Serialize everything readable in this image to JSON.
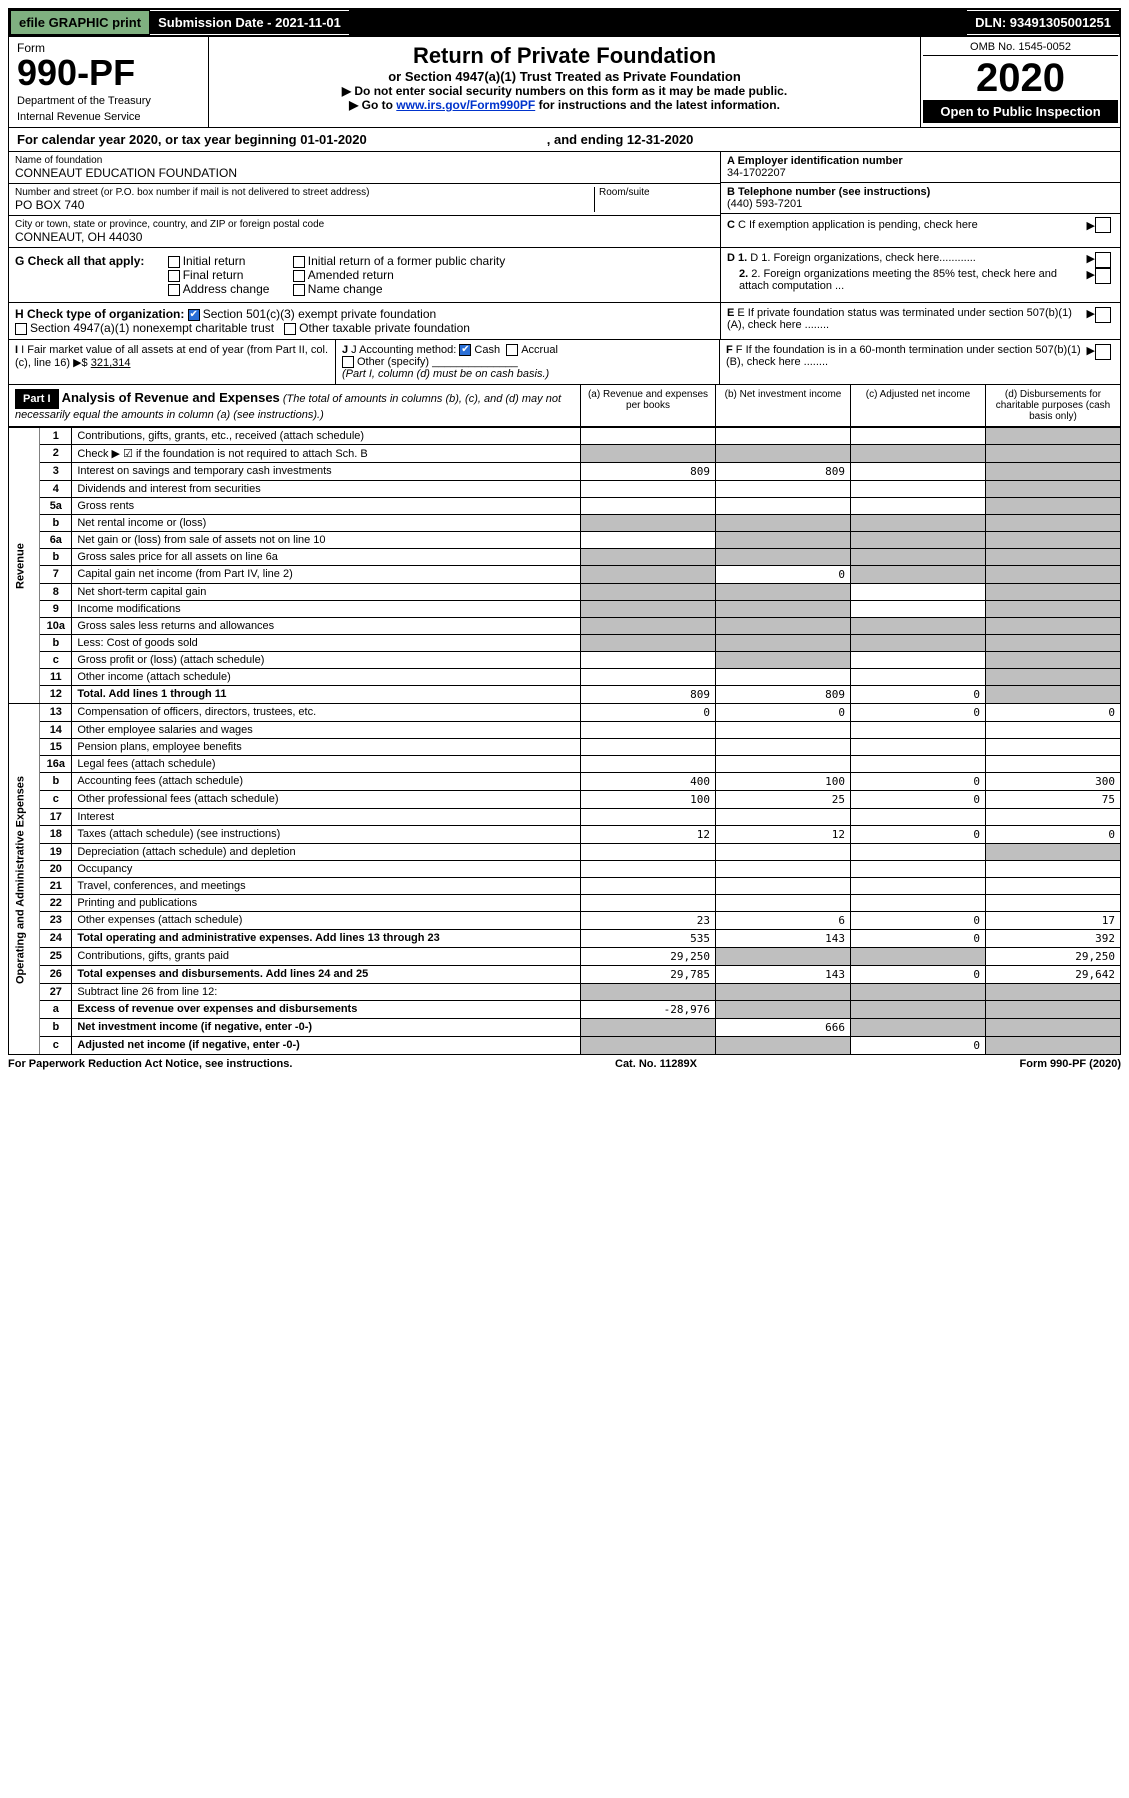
{
  "topbar": {
    "efile": "efile GRAPHIC print",
    "submission": "Submission Date - 2021-11-01",
    "dln": "DLN: 93491305001251"
  },
  "header": {
    "form_word": "Form",
    "form_no": "990-PF",
    "dept": "Department of the Treasury",
    "irs": "Internal Revenue Service",
    "title": "Return of Private Foundation",
    "sub1": "or Section 4947(a)(1) Trust Treated as Private Foundation",
    "sub2": "▶ Do not enter social security numbers on this form as it may be made public.",
    "sub3_pre": "▶ Go to ",
    "sub3_link": "www.irs.gov/Form990PF",
    "sub3_post": " for instructions and the latest information.",
    "omb": "OMB No. 1545-0052",
    "year": "2020",
    "open": "Open to Public Inspection"
  },
  "cal": {
    "pre": "For calendar year 2020, or tax year beginning ",
    "begin": "01-01-2020",
    "mid": ", and ending ",
    "end": "12-31-2020"
  },
  "id": {
    "name_label": "Name of foundation",
    "name": "CONNEAUT EDUCATION FOUNDATION",
    "addr_label": "Number and street (or P.O. box number if mail is not delivered to street address)",
    "addr": "PO BOX 740",
    "room_label": "Room/suite",
    "city_label": "City or town, state or province, country, and ZIP or foreign postal code",
    "city": "CONNEAUT, OH  44030",
    "ein_label": "A Employer identification number",
    "ein": "34-1702207",
    "tel_label": "B Telephone number (see instructions)",
    "tel": "(440) 593-7201",
    "c": "C If exemption application is pending, check here",
    "d1": "D 1. Foreign organizations, check here............",
    "d2": "2. Foreign organizations meeting the 85% test, check here and attach computation ...",
    "e": "E If private foundation status was terminated under section 507(b)(1)(A), check here ........",
    "f": "F If the foundation is in a 60-month termination under section 507(b)(1)(B), check here ........"
  },
  "g": {
    "label": "G Check all that apply:",
    "opts": [
      "Initial return",
      "Final return",
      "Address change",
      "Initial return of a former public charity",
      "Amended return",
      "Name change"
    ]
  },
  "h": {
    "label": "H Check type of organization:",
    "o1": "Section 501(c)(3) exempt private foundation",
    "o2": "Section 4947(a)(1) nonexempt charitable trust",
    "o3": "Other taxable private foundation"
  },
  "i": {
    "label": "I Fair market value of all assets at end of year (from Part II, col. (c), line 16) ▶$ ",
    "val": "321,314"
  },
  "j": {
    "label": "J Accounting method:",
    "o1": "Cash",
    "o2": "Accrual",
    "o3": "Other (specify)",
    "note": "(Part I, column (d) must be on cash basis.)"
  },
  "part1": {
    "hdr": "Part I",
    "title": "Analysis of Revenue and Expenses",
    "note": " (The total of amounts in columns (b), (c), and (d) may not necessarily equal the amounts in column (a) (see instructions).)",
    "cols": {
      "a": "(a) Revenue and expenses per books",
      "b": "(b) Net investment income",
      "c": "(c) Adjusted net income",
      "d": "(d) Disbursements for charitable purposes (cash basis only)"
    }
  },
  "side": {
    "rev": "Revenue",
    "exp": "Operating and Administrative Expenses"
  },
  "rows": [
    {
      "n": "1",
      "d": "Contributions, gifts, grants, etc., received (attach schedule)",
      "a": "",
      "b": "",
      "c": "",
      "dcol": "",
      "shade_d": true
    },
    {
      "n": "2",
      "d": "Check ▶ ☑ if the foundation is not required to attach Sch. B",
      "a": "",
      "b": "",
      "c": "",
      "dcol": "",
      "shade_all": true,
      "checked": true
    },
    {
      "n": "3",
      "d": "Interest on savings and temporary cash investments",
      "a": "809",
      "b": "809",
      "c": "",
      "dcol": "",
      "shade_d": true
    },
    {
      "n": "4",
      "d": "Dividends and interest from securities",
      "a": "",
      "b": "",
      "c": "",
      "dcol": "",
      "shade_d": true
    },
    {
      "n": "5a",
      "d": "Gross rents",
      "a": "",
      "b": "",
      "c": "",
      "dcol": "",
      "shade_d": true
    },
    {
      "n": "b",
      "d": "Net rental income or (loss)",
      "a": "",
      "b": "",
      "c": "",
      "dcol": "",
      "shade_all": true
    },
    {
      "n": "6a",
      "d": "Net gain or (loss) from sale of assets not on line 10",
      "a": "",
      "b": "",
      "c": "",
      "dcol": "",
      "shade_bcd": true
    },
    {
      "n": "b",
      "d": "Gross sales price for all assets on line 6a",
      "a": "",
      "b": "",
      "c": "",
      "dcol": "",
      "shade_all": true
    },
    {
      "n": "7",
      "d": "Capital gain net income (from Part IV, line 2)",
      "a": "",
      "b": "0",
      "c": "",
      "dcol": "",
      "shade_a": true,
      "shade_cd": true
    },
    {
      "n": "8",
      "d": "Net short-term capital gain",
      "a": "",
      "b": "",
      "c": "",
      "dcol": "",
      "shade_ab": true,
      "shade_d": true
    },
    {
      "n": "9",
      "d": "Income modifications",
      "a": "",
      "b": "",
      "c": "",
      "dcol": "",
      "shade_ab": true,
      "shade_d": true
    },
    {
      "n": "10a",
      "d": "Gross sales less returns and allowances",
      "a": "",
      "b": "",
      "c": "",
      "dcol": "",
      "shade_all": true
    },
    {
      "n": "b",
      "d": "Less: Cost of goods sold",
      "a": "",
      "b": "",
      "c": "",
      "dcol": "",
      "shade_all": true
    },
    {
      "n": "c",
      "d": "Gross profit or (loss) (attach schedule)",
      "a": "",
      "b": "",
      "c": "",
      "dcol": "",
      "shade_b": true,
      "shade_d": true
    },
    {
      "n": "11",
      "d": "Other income (attach schedule)",
      "a": "",
      "b": "",
      "c": "",
      "dcol": "",
      "shade_d": true
    },
    {
      "n": "12",
      "d": "Total. Add lines 1 through 11",
      "a": "809",
      "b": "809",
      "c": "0",
      "dcol": "",
      "bold": true,
      "shade_d": true
    },
    {
      "n": "13",
      "d": "Compensation of officers, directors, trustees, etc.",
      "a": "0",
      "b": "0",
      "c": "0",
      "dcol": "0"
    },
    {
      "n": "14",
      "d": "Other employee salaries and wages",
      "a": "",
      "b": "",
      "c": "",
      "dcol": ""
    },
    {
      "n": "15",
      "d": "Pension plans, employee benefits",
      "a": "",
      "b": "",
      "c": "",
      "dcol": ""
    },
    {
      "n": "16a",
      "d": "Legal fees (attach schedule)",
      "a": "",
      "b": "",
      "c": "",
      "dcol": ""
    },
    {
      "n": "b",
      "d": "Accounting fees (attach schedule)",
      "a": "400",
      "b": "100",
      "c": "0",
      "dcol": "300"
    },
    {
      "n": "c",
      "d": "Other professional fees (attach schedule)",
      "a": "100",
      "b": "25",
      "c": "0",
      "dcol": "75"
    },
    {
      "n": "17",
      "d": "Interest",
      "a": "",
      "b": "",
      "c": "",
      "dcol": ""
    },
    {
      "n": "18",
      "d": "Taxes (attach schedule) (see instructions)",
      "a": "12",
      "b": "12",
      "c": "0",
      "dcol": "0"
    },
    {
      "n": "19",
      "d": "Depreciation (attach schedule) and depletion",
      "a": "",
      "b": "",
      "c": "",
      "dcol": "",
      "shade_d": true
    },
    {
      "n": "20",
      "d": "Occupancy",
      "a": "",
      "b": "",
      "c": "",
      "dcol": ""
    },
    {
      "n": "21",
      "d": "Travel, conferences, and meetings",
      "a": "",
      "b": "",
      "c": "",
      "dcol": ""
    },
    {
      "n": "22",
      "d": "Printing and publications",
      "a": "",
      "b": "",
      "c": "",
      "dcol": ""
    },
    {
      "n": "23",
      "d": "Other expenses (attach schedule)",
      "a": "23",
      "b": "6",
      "c": "0",
      "dcol": "17"
    },
    {
      "n": "24",
      "d": "Total operating and administrative expenses. Add lines 13 through 23",
      "a": "535",
      "b": "143",
      "c": "0",
      "dcol": "392",
      "bold": true
    },
    {
      "n": "25",
      "d": "Contributions, gifts, grants paid",
      "a": "29,250",
      "b": "",
      "c": "",
      "dcol": "29,250",
      "shade_bc": true
    },
    {
      "n": "26",
      "d": "Total expenses and disbursements. Add lines 24 and 25",
      "a": "29,785",
      "b": "143",
      "c": "0",
      "dcol": "29,642",
      "bold": true
    },
    {
      "n": "27",
      "d": "Subtract line 26 from line 12:",
      "a": "",
      "b": "",
      "c": "",
      "dcol": "",
      "shade_all": true
    },
    {
      "n": "a",
      "d": "Excess of revenue over expenses and disbursements",
      "a": "-28,976",
      "b": "",
      "c": "",
      "dcol": "",
      "bold": true,
      "shade_bcd": true
    },
    {
      "n": "b",
      "d": "Net investment income (if negative, enter -0-)",
      "a": "",
      "b": "666",
      "c": "",
      "dcol": "",
      "bold": true,
      "shade_a": true,
      "shade_cd": true
    },
    {
      "n": "c",
      "d": "Adjusted net income (if negative, enter -0-)",
      "a": "",
      "b": "",
      "c": "0",
      "dcol": "",
      "bold": true,
      "shade_ab": true,
      "shade_d": true
    }
  ],
  "foot": {
    "left": "For Paperwork Reduction Act Notice, see instructions.",
    "mid": "Cat. No. 11289X",
    "right": "Form 990-PF (2020)"
  }
}
